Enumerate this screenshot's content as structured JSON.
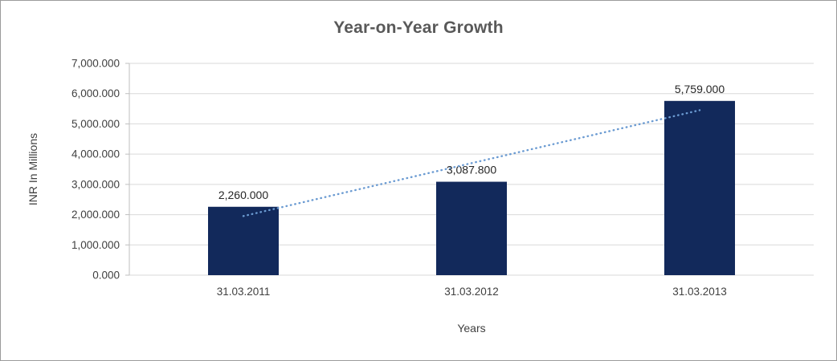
{
  "chart_data": {
    "type": "bar",
    "title": "Year-on-Year Growth",
    "xlabel": "Years",
    "ylabel": "INR In Millions",
    "categories": [
      "31.03.2011",
      "31.03.2012",
      "31.03.2013"
    ],
    "values": [
      2260.0,
      3087.8,
      5759.0
    ],
    "data_labels": [
      "2,260.000",
      "3,087.800",
      "5,759.000"
    ],
    "ylim": [
      0,
      7000
    ],
    "ytick_step": 1000,
    "ytick_labels": [
      "0.000",
      "1,000.000",
      "2,000.000",
      "3,000.000",
      "4,000.000",
      "5,000.000",
      "6,000.000",
      "7,000.000"
    ],
    "grid": true,
    "legend": "none",
    "trendline": {
      "type": "linear",
      "style": "dotted",
      "color": "#6b9bd2"
    },
    "colors": {
      "bar": "#12295b",
      "title": "#595959",
      "axis_text": "#404040",
      "data_label_text": "#262626",
      "gridline": "#d9d9d9",
      "axis_line": "#bfbfbf",
      "background": "#ffffff",
      "border": "#9b9b9b"
    }
  }
}
